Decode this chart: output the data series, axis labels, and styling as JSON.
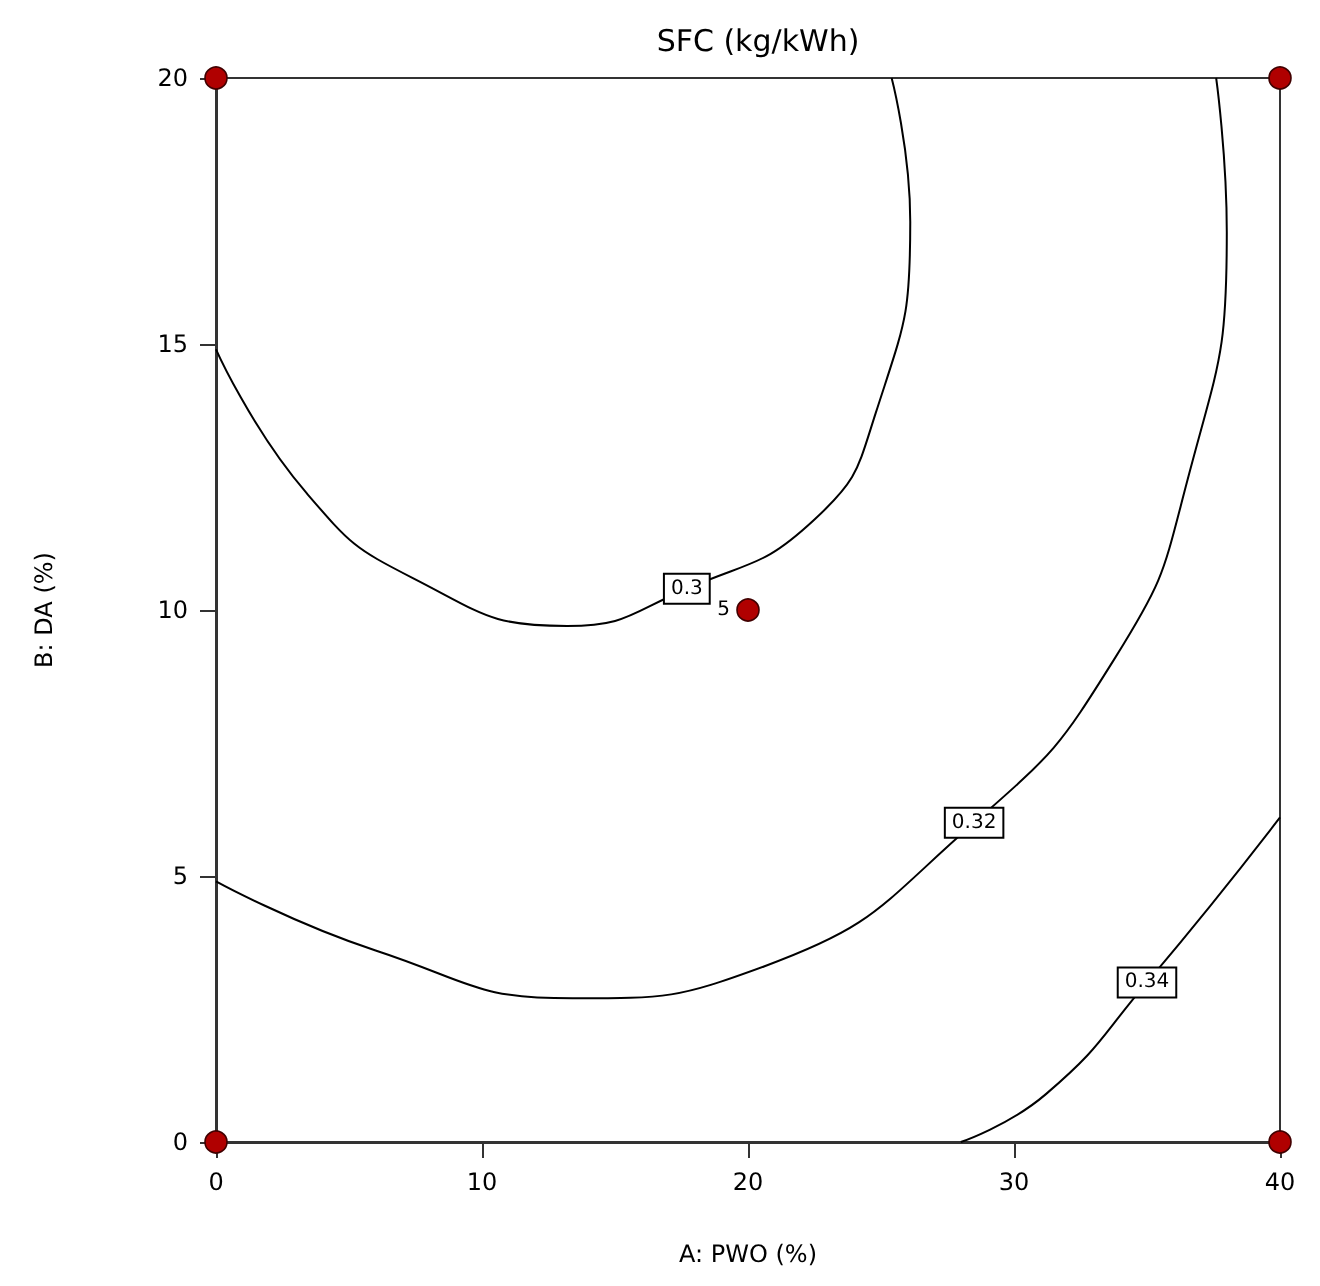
{
  "chart_data": {
    "type": "line",
    "title": "SFC (kg/kWh)",
    "xlabel": "A: PWO (%)",
    "ylabel": "B: DA (%)",
    "xlim": [
      0,
      40
    ],
    "xticks": [
      0,
      10,
      20,
      30,
      40
    ],
    "ylim": [
      0,
      20
    ],
    "yticks": [
      0,
      5,
      10,
      15,
      20
    ],
    "grid": false,
    "marker": "none",
    "line_style": "solid",
    "annotations": [
      {
        "text": "5",
        "x": 20,
        "y": 10
      }
    ],
    "series": [
      {
        "name": "0.3",
        "color": "#000000",
        "x": [
          0,
          3.4,
          7.4,
          13.2,
          17.7,
          22.5,
          24.8,
          26.1,
          25.4
        ],
        "values": [
          14.9,
          12.2,
          10.6,
          9.7,
          10.4,
          11.7,
          13.7,
          17.3,
          20
        ]
      },
      {
        "name": "0.32",
        "color": "#000000",
        "x": [
          0,
          6,
          13.4,
          20.6,
          28.5,
          33.8,
          36.5,
          38,
          37.6
        ],
        "values": [
          4.9,
          3.6,
          2.7,
          3.3,
          6,
          9.1,
          12.4,
          17.1,
          20
        ]
      },
      {
        "name": "0.34",
        "color": "#000000",
        "x": [
          28,
          31.2,
          35,
          40
        ],
        "values": [
          0,
          0.9,
          3,
          6.1
        ]
      },
      {
        "type": "scatter",
        "color": "#b00000",
        "marker": "circle",
        "x": [
          0,
          0,
          40,
          40,
          20
        ],
        "values": [
          0,
          20,
          0,
          20,
          10
        ]
      }
    ]
  }
}
